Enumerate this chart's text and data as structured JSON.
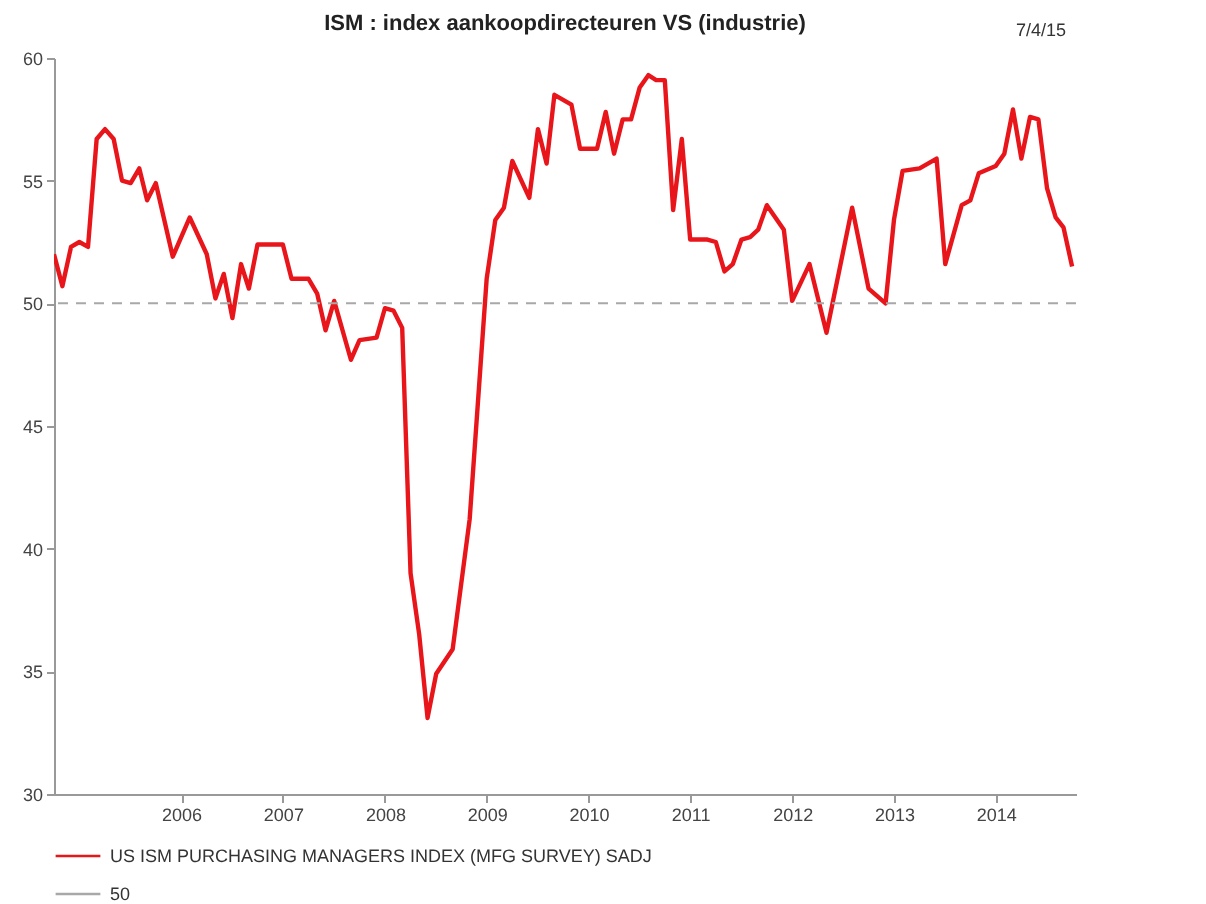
{
  "chart_data": {
    "type": "line",
    "title": "ISM : index aankoopdirecteuren VS (industrie)",
    "annotations": [
      "7/4/15"
    ],
    "x": [
      "2005-04",
      "2005-05",
      "2005-06",
      "2005-07",
      "2005-08",
      "2005-09",
      "2005-10",
      "2005-11",
      "2005-12",
      "2006-01",
      "2006-02",
      "2006-03",
      "2006-04",
      "2006-06",
      "2006-08",
      "2006-10",
      "2006-11",
      "2006-12",
      "2007-01",
      "2007-02",
      "2007-03",
      "2007-04",
      "2007-07",
      "2007-08",
      "2007-10",
      "2007-11",
      "2007-12",
      "2008-01",
      "2008-03",
      "2008-04",
      "2008-06",
      "2008-07",
      "2008-08",
      "2008-09",
      "2008-10",
      "2008-11",
      "2008-12",
      "2009-01",
      "2009-03",
      "2009-05",
      "2009-07",
      "2009-08",
      "2009-09",
      "2009-10",
      "2009-12",
      "2010-01",
      "2010-02",
      "2010-03",
      "2010-05",
      "2010-06",
      "2010-08",
      "2010-09",
      "2010-10",
      "2010-11",
      "2010-12",
      "2011-01",
      "2011-02",
      "2011-03",
      "2011-04",
      "2011-05",
      "2011-06",
      "2011-07",
      "2011-09",
      "2011-10",
      "2011-11",
      "2011-12",
      "2012-01",
      "2012-02",
      "2012-03",
      "2012-04",
      "2012-06",
      "2012-07",
      "2012-09",
      "2012-11",
      "2013-02",
      "2013-04",
      "2013-06",
      "2013-07",
      "2013-08",
      "2013-10",
      "2013-12",
      "2014-01",
      "2014-03",
      "2014-04",
      "2014-05",
      "2014-07",
      "2014-08",
      "2014-09",
      "2014-10",
      "2014-11",
      "2014-12",
      "2015-01",
      "2015-02",
      "2015-03",
      "2015-04"
    ],
    "series": [
      {
        "name": "US ISM PURCHASING MANAGERS INDEX (MFG SURVEY) SADJ",
        "color": "#e8161b",
        "values": [
          52.0,
          50.7,
          52.3,
          52.5,
          52.3,
          56.7,
          57.1,
          56.7,
          55.0,
          54.9,
          55.5,
          54.2,
          54.9,
          51.9,
          53.5,
          52.0,
          50.2,
          51.2,
          49.4,
          51.6,
          50.6,
          52.4,
          52.4,
          51.0,
          51.0,
          50.4,
          48.9,
          50.1,
          47.7,
          48.5,
          48.6,
          49.8,
          49.7,
          49.0,
          39.0,
          36.5,
          33.1,
          34.9,
          35.9,
          41.2,
          51.0,
          53.4,
          53.9,
          55.8,
          54.3,
          57.1,
          55.7,
          58.5,
          58.1,
          56.3,
          56.3,
          57.8,
          56.1,
          57.5,
          57.5,
          58.8,
          59.3,
          59.1,
          59.1,
          53.8,
          56.7,
          52.6,
          52.6,
          52.5,
          51.3,
          51.6,
          52.6,
          52.7,
          53.0,
          54.0,
          53.0,
          50.1,
          51.6,
          48.8,
          53.9,
          50.6,
          50.0,
          53.4,
          55.4,
          55.5,
          55.9,
          51.6,
          54.0,
          54.2,
          55.3,
          55.6,
          56.1,
          57.9,
          55.9,
          57.6,
          57.5,
          54.7,
          53.5,
          53.1,
          51.5
        ]
      }
    ],
    "ref_lines": [
      {
        "axis": "y",
        "value": 50,
        "label": "50",
        "color": "#a8a8a8",
        "line_style": "dashed"
      }
    ],
    "xlim": [
      "2005-04",
      "2015-04-15"
    ],
    "xticks": [
      {
        "value": "2006-07",
        "label": "2006"
      },
      {
        "value": "2007-07",
        "label": "2007"
      },
      {
        "value": "2008-07",
        "label": "2008"
      },
      {
        "value": "2009-07",
        "label": "2009"
      },
      {
        "value": "2010-07",
        "label": "2010"
      },
      {
        "value": "2011-07",
        "label": "2011"
      },
      {
        "value": "2012-07",
        "label": "2012"
      },
      {
        "value": "2013-07",
        "label": "2013"
      },
      {
        "value": "2014-07",
        "label": "2014"
      }
    ],
    "ylim": [
      30,
      60
    ],
    "yticks": [
      30,
      35,
      40,
      45,
      50,
      55,
      60
    ],
    "grid": false,
    "legend": "bottom left",
    "line_style": "solid",
    "marker": "none"
  }
}
